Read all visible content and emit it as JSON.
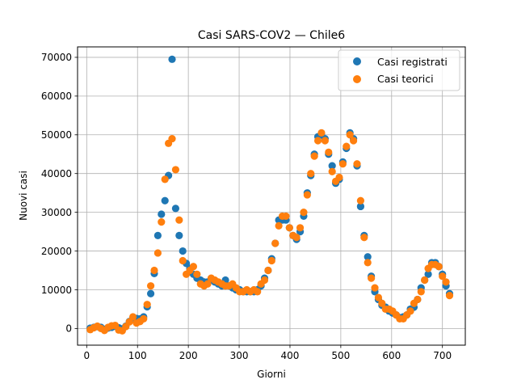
{
  "chart_data": {
    "type": "scatter",
    "title": "Casi SARS-COV2 — Chile6",
    "xlabel": "Giorni",
    "ylabel": "Nuovi casi",
    "xlim": [
      -18,
      745
    ],
    "ylim": [
      -4300,
      72700
    ],
    "xticks": [
      0,
      100,
      200,
      300,
      400,
      500,
      600,
      700
    ],
    "yticks": [
      0,
      10000,
      20000,
      30000,
      40000,
      50000,
      60000,
      70000
    ],
    "grid": true,
    "legend_position": "top-right",
    "series": [
      {
        "name": "Casi registrati",
        "color": "#1f77b4",
        "x": [
          7,
          14,
          21,
          28,
          35,
          42,
          49,
          56,
          63,
          70,
          77,
          84,
          91,
          98,
          105,
          112,
          119,
          126,
          133,
          140,
          147,
          154,
          161,
          168,
          175,
          182,
          189,
          196,
          203,
          210,
          217,
          224,
          231,
          238,
          245,
          252,
          259,
          266,
          273,
          280,
          287,
          294,
          301,
          308,
          315,
          322,
          329,
          336,
          343,
          350,
          357,
          364,
          371,
          378,
          385,
          392,
          399,
          406,
          413,
          420,
          427,
          434,
          441,
          448,
          455,
          462,
          469,
          476,
          483,
          490,
          497,
          504,
          511,
          518,
          525,
          532,
          539,
          546,
          553,
          560,
          567,
          574,
          581,
          588,
          595,
          602,
          609,
          616,
          623,
          630,
          637,
          644,
          651,
          658,
          665,
          672,
          679,
          686,
          693,
          700,
          707,
          714
        ],
        "y": [
          100,
          300,
          500,
          300,
          -200,
          100,
          300,
          600,
          200,
          -100,
          600,
          1800,
          2800,
          2600,
          2500,
          3000,
          5600,
          9000,
          14200,
          24000,
          29500,
          33000,
          39500,
          69500,
          31000,
          24000,
          20000,
          16800,
          15500,
          14000,
          13000,
          12500,
          12000,
          12000,
          12500,
          12000,
          11500,
          11000,
          12500,
          11000,
          10500,
          10000,
          10000,
          9500,
          9500,
          9500,
          9500,
          10000,
          11000,
          13000,
          15000,
          18000,
          22000,
          28000,
          28000,
          28000,
          26000,
          24000,
          23000,
          25000,
          29000,
          35000,
          39500,
          45000,
          49500,
          50000,
          49000,
          45000,
          42000,
          37500,
          38500,
          43000,
          46500,
          50500,
          49000,
          42000,
          31500,
          24000,
          18500,
          13500,
          9500,
          7500,
          6000,
          5500,
          4500,
          4000,
          3500,
          2800,
          3000,
          3500,
          5000,
          5500,
          7500,
          10500,
          12500,
          14000,
          17000,
          17000,
          16000,
          14000,
          11000,
          9000
        ]
      },
      {
        "name": "Casi teorici",
        "color": "#ff7f0e",
        "x": [
          7,
          14,
          21,
          28,
          35,
          42,
          49,
          56,
          63,
          70,
          77,
          84,
          91,
          98,
          105,
          112,
          119,
          126,
          133,
          140,
          147,
          154,
          161,
          168,
          175,
          182,
          189,
          196,
          203,
          210,
          217,
          224,
          231,
          238,
          245,
          252,
          259,
          266,
          273,
          280,
          287,
          294,
          301,
          308,
          315,
          322,
          329,
          336,
          343,
          350,
          357,
          364,
          371,
          378,
          385,
          392,
          399,
          406,
          413,
          420,
          427,
          434,
          441,
          448,
          455,
          462,
          469,
          476,
          483,
          490,
          497,
          504,
          511,
          518,
          525,
          532,
          539,
          546,
          553,
          560,
          567,
          574,
          581,
          588,
          595,
          602,
          609,
          616,
          623,
          630,
          637,
          644,
          651,
          658,
          665,
          672,
          679,
          686,
          693,
          700,
          707,
          714
        ],
        "y": [
          -300,
          200,
          600,
          0,
          -500,
          300,
          700,
          800,
          -400,
          -600,
          500,
          1700,
          3000,
          1400,
          1800,
          2500,
          6200,
          11000,
          15000,
          19500,
          27500,
          38500,
          47800,
          49000,
          41000,
          28000,
          17500,
          14000,
          15000,
          16000,
          14000,
          11500,
          11000,
          11500,
          13000,
          12500,
          12000,
          11500,
          11000,
          11000,
          11500,
          10500,
          9500,
          9500,
          10000,
          9500,
          10000,
          9500,
          11500,
          12500,
          15000,
          17500,
          22000,
          26500,
          29000,
          29000,
          26000,
          24000,
          23500,
          26000,
          30000,
          34500,
          40000,
          44500,
          48500,
          50500,
          48500,
          45500,
          40500,
          38000,
          39000,
          42500,
          47000,
          50000,
          48500,
          42500,
          33000,
          23500,
          17000,
          13000,
          10500,
          8000,
          6500,
          5000,
          5000,
          4500,
          3500,
          2500,
          2500,
          3500,
          4500,
          6500,
          7500,
          9500,
          12500,
          15500,
          16500,
          16500,
          16000,
          13500,
          12000,
          8500
        ]
      }
    ]
  }
}
